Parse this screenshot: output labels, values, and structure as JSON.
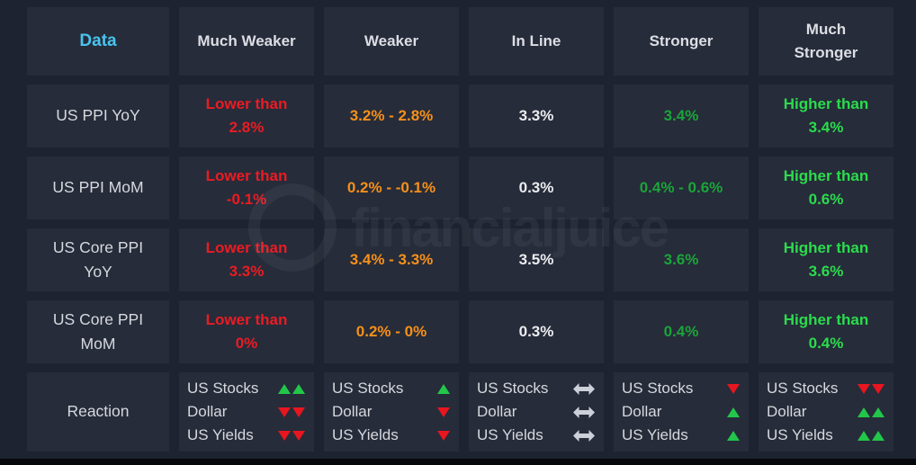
{
  "colors": {
    "bg": "#1d2330",
    "cell": "#262c3a",
    "header_text": "#dcdee3",
    "data_header": "#4ac3ee",
    "label": "#d6d8dd",
    "red": "#ea1c23",
    "orange": "#f79019",
    "neutral": "#ebecef",
    "green": "#1ba439",
    "bright_green": "#2bdc4c",
    "arrow_up": "#22c74a",
    "arrow_down": "#e8161f",
    "arrow_flat": "#ccd0d8",
    "watermark": "rgba(255,255,255,0.05)",
    "footer": "#07080c"
  },
  "watermark": {
    "text": "financialjuice",
    "logo": "ring-icon"
  },
  "table": {
    "columns": [
      "Data",
      "Much Weaker",
      "Weaker",
      "In Line",
      "Stronger",
      "Much\nStronger"
    ],
    "rows": [
      {
        "label": "US PPI YoY",
        "cells": [
          {
            "text": "Lower than\n2.8%",
            "tone": "red"
          },
          {
            "text": "3.2% - 2.8%",
            "tone": "orange"
          },
          {
            "text": "3.3%",
            "tone": "neutral"
          },
          {
            "text": "3.4%",
            "tone": "green"
          },
          {
            "text": "Higher than\n3.4%",
            "tone": "bright"
          }
        ]
      },
      {
        "label": "US PPI MoM",
        "cells": [
          {
            "text": "Lower than\n-0.1%",
            "tone": "red"
          },
          {
            "text": "0.2% - -0.1%",
            "tone": "orange"
          },
          {
            "text": "0.3%",
            "tone": "neutral"
          },
          {
            "text": "0.4% - 0.6%",
            "tone": "green"
          },
          {
            "text": "Higher than\n0.6%",
            "tone": "bright"
          }
        ]
      },
      {
        "label": "US Core PPI\nYoY",
        "cells": [
          {
            "text": "Lower than\n3.3%",
            "tone": "red"
          },
          {
            "text": "3.4% - 3.3%",
            "tone": "orange"
          },
          {
            "text": "3.5%",
            "tone": "neutral"
          },
          {
            "text": "3.6%",
            "tone": "green"
          },
          {
            "text": "Higher than\n3.6%",
            "tone": "bright"
          }
        ]
      },
      {
        "label": "US Core PPI\nMoM",
        "cells": [
          {
            "text": "Lower than\n0%",
            "tone": "red"
          },
          {
            "text": "0.2% - 0%",
            "tone": "orange"
          },
          {
            "text": "0.3%",
            "tone": "neutral"
          },
          {
            "text": "0.4%",
            "tone": "green"
          },
          {
            "text": "Higher than\n0.4%",
            "tone": "bright"
          }
        ]
      }
    ],
    "reaction": {
      "label": "Reaction",
      "assets": [
        "US Stocks",
        "Dollar",
        "US Yields"
      ],
      "cells": [
        [
          {
            "dir": "up",
            "count": 2
          },
          {
            "dir": "down",
            "count": 2
          },
          {
            "dir": "down",
            "count": 2
          }
        ],
        [
          {
            "dir": "up",
            "count": 1
          },
          {
            "dir": "down",
            "count": 1
          },
          {
            "dir": "down",
            "count": 1
          }
        ],
        [
          {
            "dir": "flat",
            "count": 1
          },
          {
            "dir": "flat",
            "count": 1
          },
          {
            "dir": "flat",
            "count": 1
          }
        ],
        [
          {
            "dir": "down",
            "count": 1
          },
          {
            "dir": "up",
            "count": 1
          },
          {
            "dir": "up",
            "count": 1
          }
        ],
        [
          {
            "dir": "down",
            "count": 2
          },
          {
            "dir": "up",
            "count": 2
          },
          {
            "dir": "up",
            "count": 2
          }
        ]
      ]
    }
  },
  "chart_data": {
    "type": "table",
    "title": "US PPI release scenarios and expected market reaction",
    "columns": [
      "Data",
      "Much Weaker",
      "Weaker",
      "In Line",
      "Stronger",
      "Much Stronger"
    ],
    "rows": [
      [
        "US PPI YoY",
        "Lower than 2.8%",
        "3.2% - 2.8%",
        "3.3%",
        "3.4%",
        "Higher than 3.4%"
      ],
      [
        "US PPI MoM",
        "Lower than -0.1%",
        "0.2% - -0.1%",
        "0.3%",
        "0.4% - 0.6%",
        "Higher than 0.6%"
      ],
      [
        "US Core PPI YoY",
        "Lower than 3.3%",
        "3.4% - 3.3%",
        "3.5%",
        "3.6%",
        "Higher than 3.6%"
      ],
      [
        "US Core PPI MoM",
        "Lower than 0%",
        "0.2% - 0%",
        "0.3%",
        "0.4%",
        "Higher than 0.4%"
      ],
      [
        "Reaction",
        "US Stocks up-up / Dollar down-down / US Yields down-down",
        "US Stocks up / Dollar down / US Yields down",
        "US Stocks flat / Dollar flat / US Yields flat",
        "US Stocks down / Dollar up / US Yields up",
        "US Stocks down-down / Dollar up-up / US Yields up-up"
      ]
    ],
    "legend_position": "none",
    "grid": false
  }
}
